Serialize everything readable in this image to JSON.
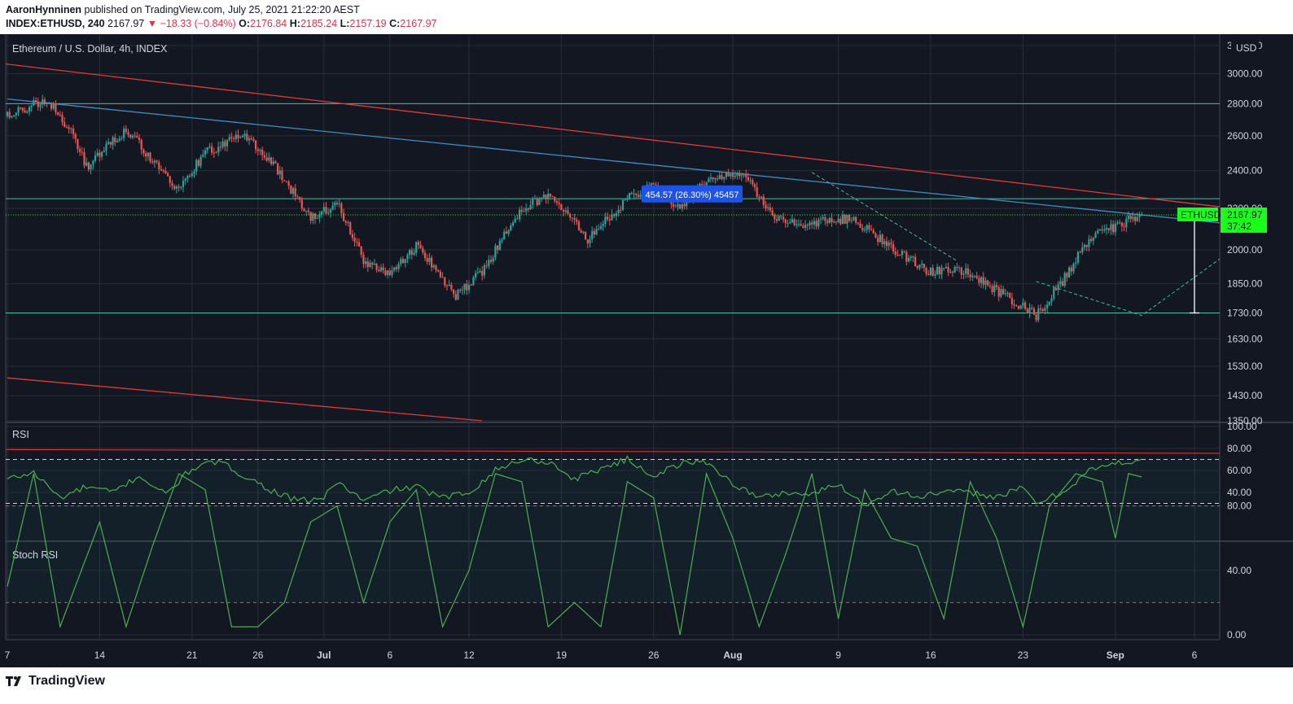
{
  "header": {
    "author": "AaronHynninen",
    "published_text": "published on TradingView.com, July 25, 2021 21:22:20 AEST",
    "symbol": "INDEX:ETHUSD, 240",
    "last": "2167.97",
    "change": "▼ −18.33 (−0.84%)",
    "o_label": "O:",
    "o_value": "2176.84",
    "h_label": "H:",
    "h_value": "2185.24",
    "l_label": "L:",
    "l_value": "2157.19",
    "c_label": "C:",
    "c_value": "2167.97"
  },
  "colors": {
    "background": "#131722",
    "grid": "#2a2e39",
    "up": "#26a69a",
    "down": "#ef5350",
    "rsi": "#4caf50",
    "red_trend": "#e53935",
    "blue_trend": "#3d8ec2",
    "level": "#3fbf9f",
    "price_tag": "#1aff1a",
    "measure_box": "#1e53e5"
  },
  "chart_data": {
    "type": "candlestick",
    "title": "Ethereum / U.S. Dollar, 4h, INDEX",
    "currency": "USD",
    "x_tick_labels": [
      "7",
      "14",
      "21",
      "26",
      "Jul",
      "6",
      "12",
      "19",
      "26",
      "Aug",
      "9",
      "16",
      "23",
      "Sep",
      "6"
    ],
    "price_axis": {
      "scale": "log",
      "range": [
        1350,
        3200
      ],
      "ticks": [
        "3200.00",
        "3000.00",
        "2800.00",
        "2600.00",
        "2400.00",
        "2200.00",
        "2000.00",
        "1850.00",
        "1730.00",
        "1630.00",
        "1530.00",
        "1430.00",
        "1350.00"
      ]
    },
    "close_path_anchors": [
      [
        0,
        2720
      ],
      [
        3,
        2830
      ],
      [
        5,
        2600
      ],
      [
        6,
        2420
      ],
      [
        9,
        2640
      ],
      [
        11,
        2460
      ],
      [
        13,
        2300
      ],
      [
        15,
        2500
      ],
      [
        18,
        2610
      ],
      [
        20,
        2450
      ],
      [
        23,
        2150
      ],
      [
        25,
        2230
      ],
      [
        27,
        1950
      ],
      [
        29,
        1880
      ],
      [
        31,
        2020
      ],
      [
        34,
        1800
      ],
      [
        36,
        1900
      ],
      [
        39,
        2200
      ],
      [
        41,
        2270
      ],
      [
        44,
        2050
      ],
      [
        47,
        2250
      ],
      [
        49,
        2330
      ],
      [
        51,
        2200
      ],
      [
        53,
        2350
      ],
      [
        56,
        2380
      ],
      [
        58,
        2150
      ],
      [
        60,
        2120
      ],
      [
        64,
        2150
      ],
      [
        67,
        2010
      ],
      [
        70,
        1900
      ],
      [
        72,
        1920
      ],
      [
        75,
        1820
      ],
      [
        78,
        1720
      ],
      [
        80,
        1860
      ],
      [
        82,
        2050
      ],
      [
        85,
        2140
      ],
      [
        86,
        2168
      ]
    ],
    "horizontal_levels": [
      2800,
      2250,
      1730
    ],
    "current_price": {
      "label": "ETHUSD",
      "value": "2167.97",
      "countdown": "37:42"
    },
    "measure": {
      "label": "454.57 (26.30%) 45457",
      "from": 1730,
      "to": 2185
    },
    "trendlines": [
      {
        "name": "red-resistance",
        "p1": [
          -12,
          3200
        ],
        "p2": [
          162,
          1720
        ]
      },
      {
        "name": "blue-resistance",
        "p1": [
          0,
          2830
        ],
        "p2": [
          156,
          1745
        ]
      },
      {
        "name": "red-lower",
        "p1": [
          0,
          1490
        ],
        "p2": [
          36,
          1350
        ]
      }
    ],
    "rsi": {
      "label": "RSI",
      "ticks": [
        "100.00",
        "80.00",
        "60.00",
        "40.00"
      ],
      "bands": [
        30,
        70
      ],
      "anchors": [
        [
          0,
          52
        ],
        [
          2,
          58
        ],
        [
          4,
          35
        ],
        [
          6,
          45
        ],
        [
          8,
          40
        ],
        [
          10,
          55
        ],
        [
          12,
          38
        ],
        [
          14,
          62
        ],
        [
          16,
          68
        ],
        [
          18,
          55
        ],
        [
          20,
          42
        ],
        [
          22,
          32
        ],
        [
          24,
          35
        ],
        [
          25,
          50
        ],
        [
          27,
          32
        ],
        [
          29,
          42
        ],
        [
          31,
          45
        ],
        [
          33,
          35
        ],
        [
          35,
          40
        ],
        [
          37,
          60
        ],
        [
          39,
          70
        ],
        [
          41,
          68
        ],
        [
          43,
          52
        ],
        [
          45,
          62
        ],
        [
          47,
          70
        ],
        [
          49,
          55
        ],
        [
          51,
          66
        ],
        [
          53,
          68
        ],
        [
          55,
          48
        ],
        [
          57,
          35
        ],
        [
          59,
          40
        ],
        [
          61,
          38
        ],
        [
          63,
          48
        ],
        [
          65,
          28
        ],
        [
          67,
          42
        ],
        [
          69,
          36
        ],
        [
          71,
          40
        ],
        [
          73,
          40
        ],
        [
          75,
          36
        ],
        [
          77,
          44
        ],
        [
          78,
          30
        ],
        [
          80,
          40
        ],
        [
          82,
          60
        ],
        [
          84,
          66
        ],
        [
          86,
          70
        ]
      ],
      "red_line": {
        "p1": [
          -1,
          79
        ],
        "p2": [
          160,
          73
        ]
      }
    },
    "stoch_rsi": {
      "label": "Stoch RSI",
      "ticks": [
        "80.00",
        "40.00",
        "0.00"
      ],
      "bands": [
        20,
        80
      ],
      "anchors": [
        [
          0,
          30
        ],
        [
          2,
          100
        ],
        [
          4,
          5
        ],
        [
          7,
          70
        ],
        [
          9,
          5
        ],
        [
          11,
          55
        ],
        [
          13,
          100
        ],
        [
          15,
          90
        ],
        [
          17,
          5
        ],
        [
          19,
          5
        ],
        [
          21,
          20
        ],
        [
          23,
          70
        ],
        [
          25,
          80
        ],
        [
          27,
          20
        ],
        [
          29,
          70
        ],
        [
          31,
          90
        ],
        [
          33,
          5
        ],
        [
          35,
          40
        ],
        [
          37,
          100
        ],
        [
          39,
          95
        ],
        [
          41,
          5
        ],
        [
          43,
          20
        ],
        [
          45,
          5
        ],
        [
          47,
          95
        ],
        [
          49,
          85
        ],
        [
          51,
          0
        ],
        [
          53,
          100
        ],
        [
          55,
          60
        ],
        [
          57,
          5
        ],
        [
          59,
          50
        ],
        [
          61,
          100
        ],
        [
          63,
          10
        ],
        [
          65,
          90
        ],
        [
          67,
          60
        ],
        [
          69,
          55
        ],
        [
          71,
          10
        ],
        [
          73,
          95
        ],
        [
          75,
          60
        ],
        [
          77,
          5
        ],
        [
          79,
          80
        ],
        [
          81,
          100
        ],
        [
          83,
          95
        ],
        [
          84,
          60
        ],
        [
          85,
          100
        ],
        [
          86,
          98
        ]
      ]
    }
  },
  "footer": {
    "logo_text": "TradingView"
  }
}
